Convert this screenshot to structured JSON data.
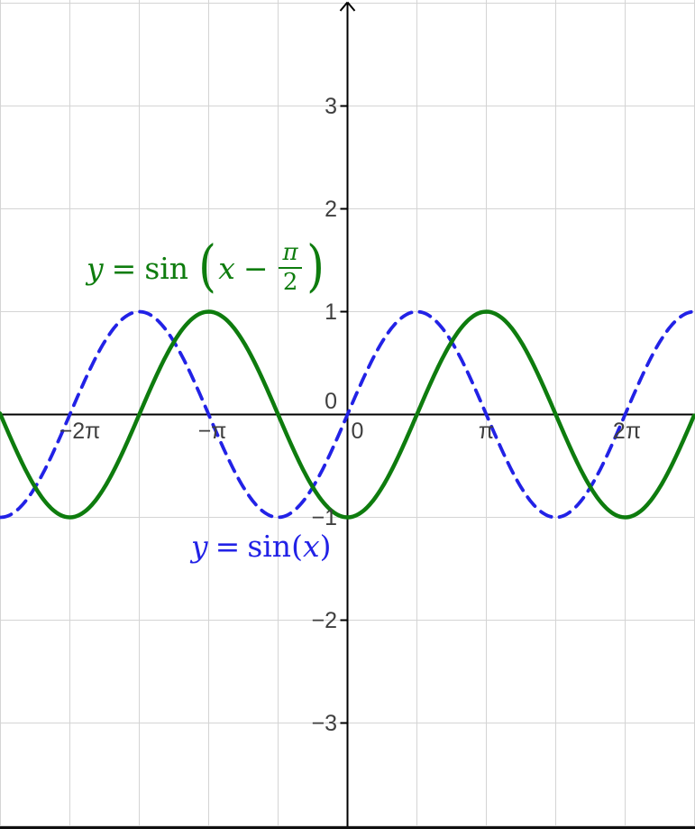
{
  "chart_data": {
    "type": "line",
    "title": "",
    "xlabel": "",
    "ylabel": "",
    "grid": true,
    "legend_position": "inline-curve-labels",
    "x_axis": {
      "unit": "radians",
      "range_pi": [
        -2.5,
        2.5
      ],
      "grid_spacing": "pi/2",
      "tick_labels": [
        {
          "value_pi": -2,
          "label": "−2π"
        },
        {
          "value_pi": -1,
          "label": "−π"
        },
        {
          "value_pi": 0,
          "label": "0"
        },
        {
          "value_pi": 1,
          "label": "π"
        },
        {
          "value_pi": 2,
          "label": "2π"
        }
      ]
    },
    "y_axis": {
      "range": [
        -4,
        4
      ],
      "grid_spacing": 1,
      "tick_labels": [
        {
          "value": 3,
          "label": "3"
        },
        {
          "value": 2,
          "label": "2"
        },
        {
          "value": 1,
          "label": "1"
        },
        {
          "value": 0,
          "label": "0"
        },
        {
          "value": -1,
          "label": "−1"
        },
        {
          "value": -2,
          "label": "−2"
        },
        {
          "value": -3,
          "label": "−3"
        }
      ]
    },
    "series": [
      {
        "name": "y = sin(x)",
        "expression": "sin(x)",
        "amplitude": 1,
        "phase_shift_pi": 0,
        "color": "#2222e6",
        "line_style": "dashed"
      },
      {
        "name": "y = sin(x − π/2)",
        "expression": "sin(x − π/2)",
        "amplitude": 1,
        "phase_shift_pi": -0.5,
        "color": "#0e7c0e",
        "line_style": "solid"
      }
    ]
  },
  "labels": {
    "green": {
      "y": "y",
      "eq": "=",
      "fn": "sin",
      "open": "(",
      "var": "x",
      "minus": "−",
      "frac_num": "π",
      "frac_den": "2",
      "close": ")"
    },
    "blue": {
      "y": "y",
      "eq": "=",
      "fn": "sin",
      "open": "(",
      "var": "x",
      "close": ")"
    }
  },
  "colors": {
    "grid": "#d4d4d4",
    "axis": "#000000",
    "tick_text": "#3f3f3f",
    "background": "#ffffff"
  }
}
